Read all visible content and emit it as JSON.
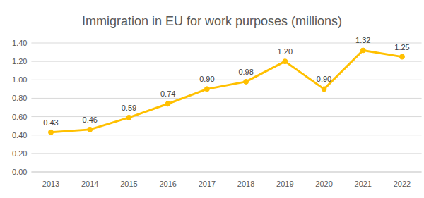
{
  "chart_data": {
    "type": "line",
    "title": "Immigration in EU for work purposes (millions)",
    "categories": [
      "2013",
      "2014",
      "2015",
      "2016",
      "2017",
      "2018",
      "2019",
      "2020",
      "2021",
      "2022"
    ],
    "values": [
      0.43,
      0.46,
      0.59,
      0.74,
      0.9,
      0.98,
      1.2,
      0.9,
      1.32,
      1.25
    ],
    "value_labels": [
      "0.43",
      "0.46",
      "0.59",
      "0.74",
      "0.90",
      "0.98",
      "1.20",
      "0.90",
      "1.32",
      "1.25"
    ],
    "color": "#ffc000",
    "marker": "circle",
    "line_style": "solid",
    "ylim": [
      0,
      1.4
    ],
    "yticks": [
      {
        "value": 0,
        "label": "0.00"
      },
      {
        "value": 0.2,
        "label": "0.20"
      },
      {
        "value": 0.4,
        "label": "0.40"
      },
      {
        "value": 0.6,
        "label": "0.60"
      },
      {
        "value": 0.8,
        "label": "0.80"
      },
      {
        "value": 1.0,
        "label": "1.00"
      },
      {
        "value": 1.2,
        "label": "1.20"
      },
      {
        "value": 1.4,
        "label": "1.40"
      }
    ],
    "grid": true,
    "data_labels": true
  }
}
